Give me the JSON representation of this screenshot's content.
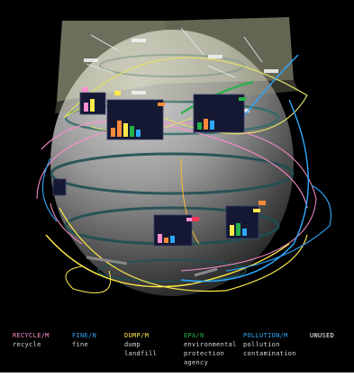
{
  "legend": [
    {
      "heading": "RECYCLE/M",
      "color": "#ff8fcf",
      "lines": [
        "recycle"
      ]
    },
    {
      "heading": "FINE/N",
      "color": "#2ea8ff",
      "lines": [
        "fine"
      ]
    },
    {
      "heading": "DUMP/M",
      "color": "#ffea4a",
      "lines": [
        "dump",
        "landfill"
      ]
    },
    {
      "heading": "EPA/N",
      "color": "#27b14a",
      "lines": [
        "environmental",
        "protection",
        "agency"
      ]
    },
    {
      "heading": "POLLUTION/M",
      "color": "#2ea8ff",
      "lines": [
        "pollution",
        "contamination"
      ]
    },
    {
      "heading": "UNUSED",
      "color": "#ffffff",
      "lines": []
    }
  ],
  "colors": {
    "background": "#000000",
    "pink": "#ff8fcf",
    "blue": "#2ea8ff",
    "yellow": "#ffea4a",
    "green": "#27b14a",
    "orange": "#ff8a3a",
    "panel": "#141833"
  }
}
